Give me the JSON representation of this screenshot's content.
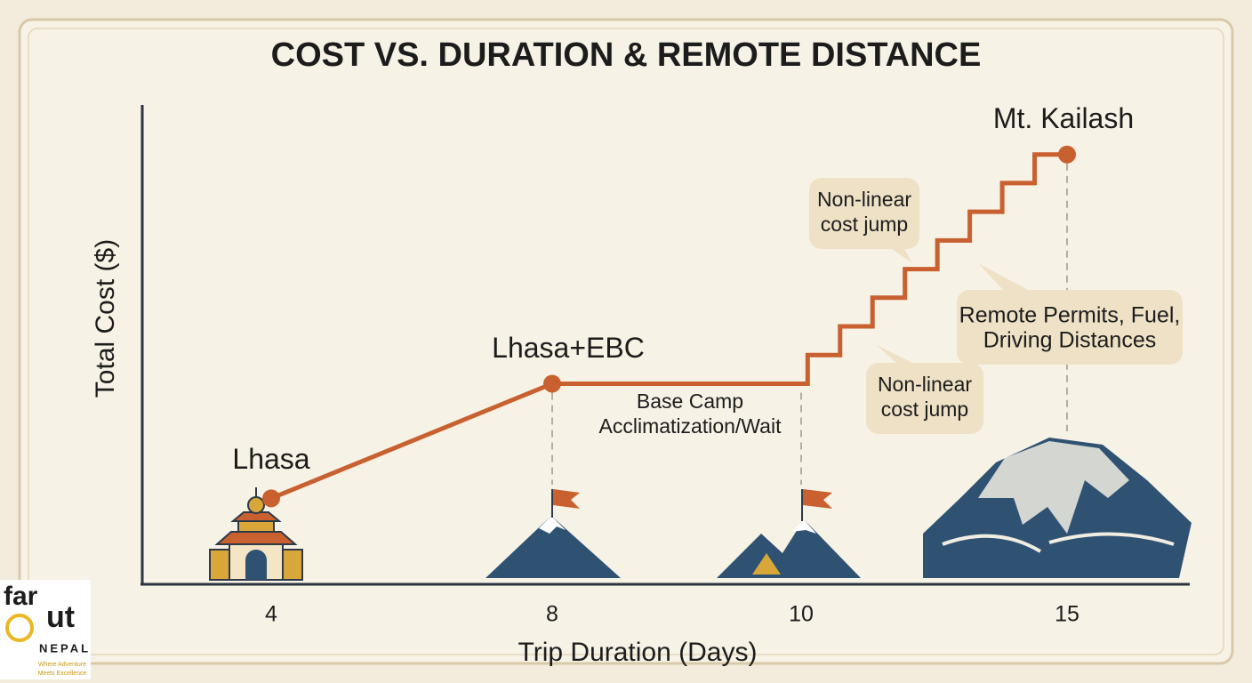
{
  "chart_data": {
    "type": "line",
    "title": "COST VS. DURATION & REMOTE DISTANCE",
    "x_label": "Trip Duration (Days)",
    "y_label": "Total Cost ($)",
    "categories": [
      "4",
      "8",
      "10",
      "15"
    ],
    "series": [
      {
        "color": "#c8602f",
        "values": [
          18,
          42,
          42,
          90
        ],
        "point_labels": [
          "Lhasa",
          "Lhasa+EBC",
          null,
          "Mt. Kailash"
        ],
        "markers": [
          true,
          true,
          false,
          true
        ],
        "interpolation": [
          "linear",
          "linear",
          "steps"
        ],
        "steps": 8
      }
    ],
    "ylim": [
      0,
      100
    ],
    "annotations": [
      {
        "lines": [
          "Base Camp",
          "Acclimatization/Wait"
        ],
        "bubble": false
      },
      {
        "lines": [
          "Non-linear",
          "cost jump"
        ],
        "bubble": true
      },
      {
        "lines": [
          "Non-linear",
          "cost jump"
        ],
        "bubble": true
      },
      {
        "lines": [
          "Remote Permits, Fuel,",
          "Driving Distances"
        ],
        "bubble": true
      }
    ]
  },
  "logo": {
    "name_top": "far",
    "name_bottom": "ut",
    "country": "NEPAL",
    "tagline": [
      "Where Adventure",
      "Meets Excellence"
    ]
  }
}
